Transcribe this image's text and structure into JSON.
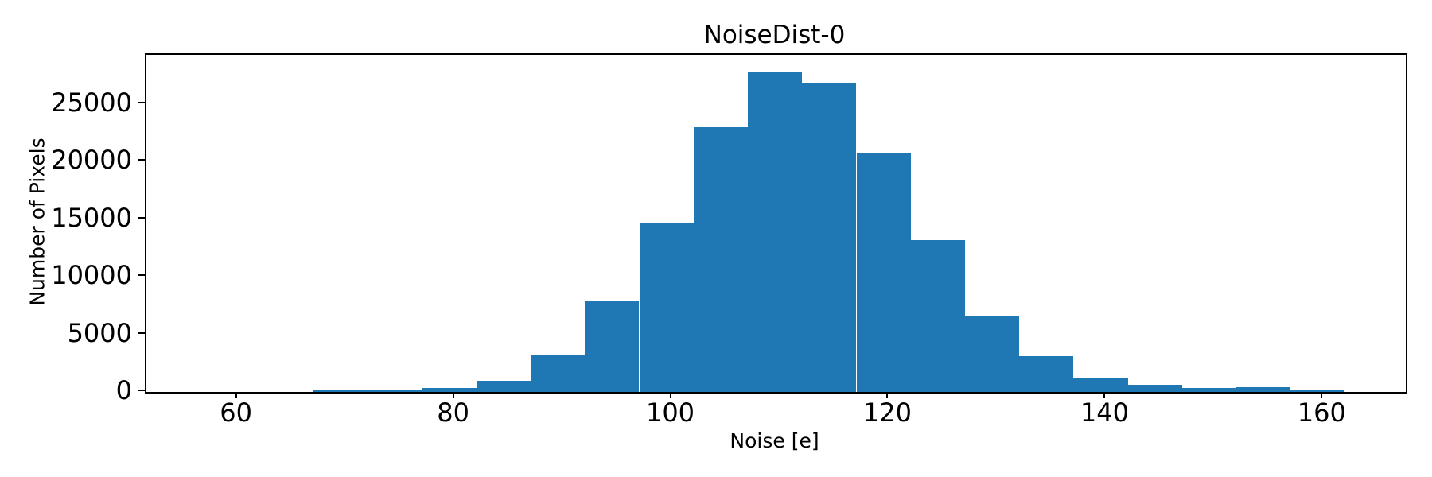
{
  "title": "NoiseDist-0",
  "chart_data": {
    "type": "bar",
    "subtype": "histogram",
    "title": "NoiseDist-0",
    "xlabel": "Noise [e]",
    "ylabel": "Number of Pixels",
    "bar_color": "#1f77b4",
    "bin_width": 5,
    "bin_edges": [
      67,
      72,
      77,
      82,
      87,
      92,
      97,
      102,
      107,
      112,
      117,
      122,
      127,
      132,
      137,
      142,
      147,
      152,
      157,
      162
    ],
    "values": [
      110,
      160,
      330,
      980,
      3250,
      7900,
      14700,
      23000,
      27800,
      26900,
      20700,
      13200,
      6600,
      3100,
      1250,
      620,
      350,
      400,
      230
    ],
    "x_ticks": [
      60,
      80,
      100,
      120,
      140,
      160
    ],
    "y_ticks": [
      0,
      5000,
      10000,
      15000,
      20000,
      25000
    ],
    "xlim": [
      51.6,
      167.6
    ],
    "ylim": [
      0,
      29280
    ],
    "grid": false,
    "legend": "none"
  }
}
